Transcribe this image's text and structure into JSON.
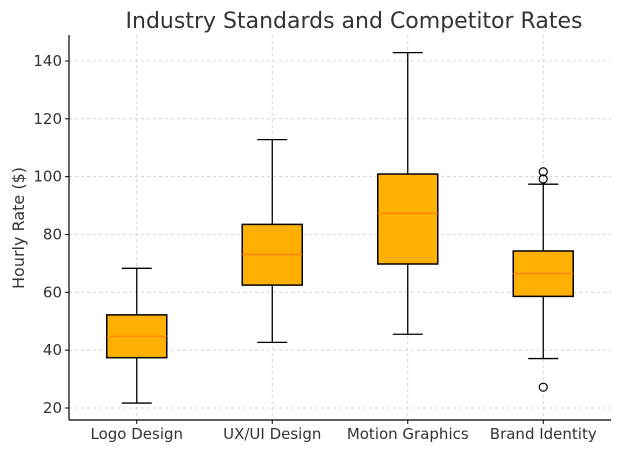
{
  "chart_data": {
    "type": "box",
    "title": "Industry Standards and Competitor Rates",
    "xlabel": "",
    "ylabel": "Hourly Rate ($)",
    "ylim": [
      16,
      149
    ],
    "yticks": [
      20,
      40,
      60,
      80,
      100,
      120,
      140
    ],
    "grid": true,
    "box_color": "#FFB000",
    "median_color": "#FF7F0E",
    "categories": [
      "Logo Design",
      "UX/UI Design",
      "Motion Graphics",
      "Brand Identity"
    ],
    "boxes": [
      {
        "whisker_low": 21.7,
        "q1": 37.4,
        "median": 44.8,
        "q3": 52.2,
        "whisker_high": 68.3,
        "outliers": []
      },
      {
        "whisker_low": 42.7,
        "q1": 62.5,
        "median": 73.1,
        "q3": 83.5,
        "whisker_high": 112.8,
        "outliers": []
      },
      {
        "whisker_low": 45.5,
        "q1": 69.8,
        "median": 87.3,
        "q3": 100.9,
        "whisker_high": 142.9,
        "outliers": []
      },
      {
        "whisker_low": 37.1,
        "q1": 58.6,
        "median": 66.5,
        "q3": 74.3,
        "whisker_high": 97.4,
        "outliers": [
          101.7,
          99.2,
          27.2
        ]
      }
    ]
  }
}
